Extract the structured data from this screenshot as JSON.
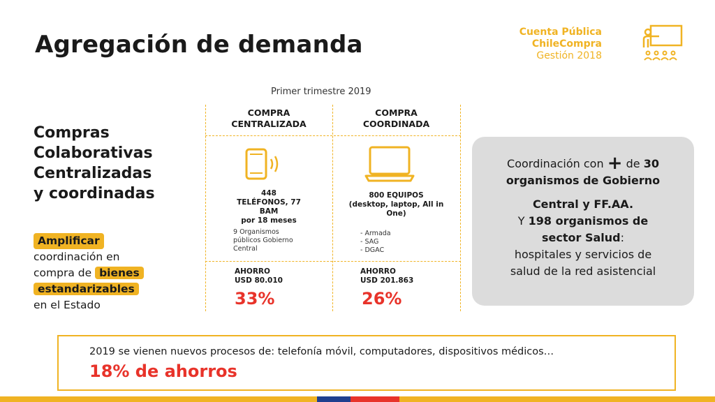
{
  "title": "Agregación de demanda",
  "logo": {
    "line1": "Cuenta Pública",
    "line2": "ChileCompra",
    "line3": "Gestión 2018",
    "icon": "presenter-icon"
  },
  "period": "Primer trimestre 2019",
  "left": {
    "heading_lines": [
      "Compras",
      "Colaborativas",
      "Centralizadas",
      "y coordinadas"
    ],
    "body": {
      "hl1": "Amplificar",
      "t1": "coordinación en",
      "t2": "compra de",
      "hl2": "bienes",
      "hl3": "estandarizables",
      "t3": "en el Estado"
    }
  },
  "table": {
    "col1": {
      "header_l1": "COMPRA",
      "header_l2": "CENTRALIZADA",
      "icon": "smartphone-icon",
      "desc_l1": "448",
      "desc_l2": "TELÉFONOS, 77",
      "desc_l3": "BAM",
      "desc_l4": "por 18 meses",
      "detail_l1": "9 Organismos",
      "detail_l2": "públicos Gobierno",
      "detail_l3": "Central",
      "saving_l1": "AHORRO",
      "saving_l2": "USD 80.010",
      "pct": "33%"
    },
    "col2": {
      "header_l1": "COMPRA",
      "header_l2": "COORDINADA",
      "icon": "laptop-icon",
      "desc_l1": "800 EQUIPOS",
      "desc_l2": "(desktop, laptop, All in",
      "desc_l3": "One)",
      "detail_l1": "- Armada",
      "detail_l2": "- SAG",
      "detail_l3": "- DGAC",
      "saving_l1": "AHORRO",
      "saving_l2": "USD 201.863",
      "pct": "26%"
    }
  },
  "gray_box": {
    "l1a": "Coordinación con",
    "plus": "+",
    "l1b": "de",
    "l1c": "30",
    "l2": "organismos de Gobierno",
    "l3": "Central y FF.AA.",
    "l4a": "Y",
    "l4b": "198 organismos de",
    "l5a": "sector Salud",
    "l5b": ":",
    "l6": "hospitales y servicios de",
    "l7": "salud de la red asistencial"
  },
  "bottom": {
    "line1": "2019 se vienen nuevos procesos de: telefonía móvil, computadores, dispositivos médicos…",
    "line2": "18% de ahorros"
  },
  "colors": {
    "accent": "#f0b323",
    "red": "#e8332a",
    "blue": "#1f3f8f",
    "gray": "#dcdcdc"
  }
}
